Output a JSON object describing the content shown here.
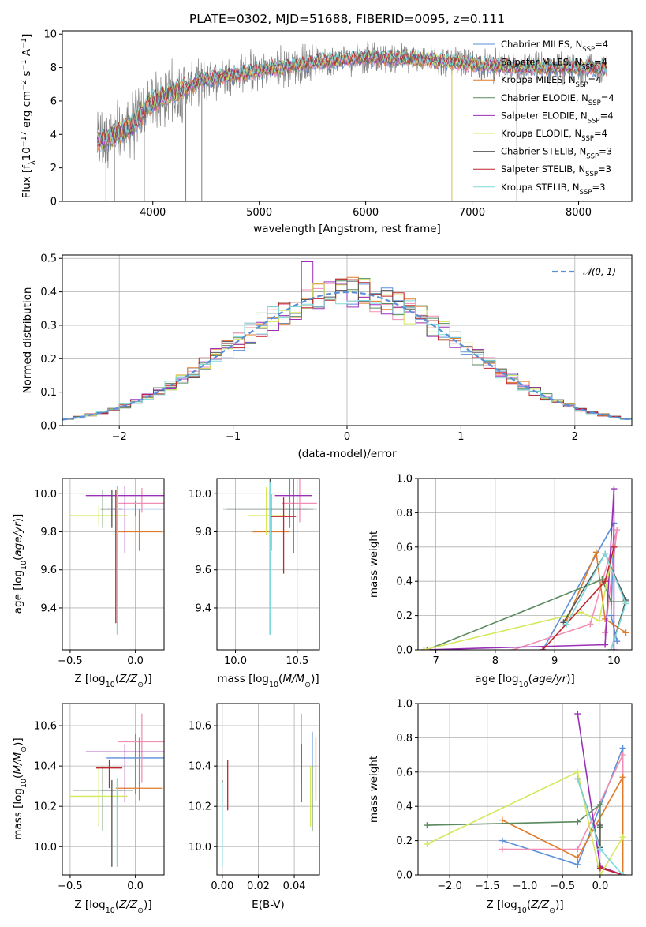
{
  "figure": {
    "title": "PLATE=0302, MJD=51688, FIBERID=0095, z=0.111"
  },
  "colors": {
    "chabrier_miles": "#5b8fd9",
    "salpeter_miles": "#f28fb5",
    "kroupa_miles": "#e07b2a",
    "chabrier_elodie": "#5a8a5e",
    "salpeter_elodie": "#9b30b8",
    "kroupa_elodie": "#d4e85a",
    "chabrier_stelib": "#555555",
    "salpeter_stelib": "#c0262c",
    "kroupa_stelib": "#7fd8dc",
    "normal_curve": "#5b8fd9"
  },
  "chart_data": [
    {
      "type": "line",
      "id": "spectrum",
      "xlabel": "wavelength [Angstrom, rest frame]",
      "ylabel": "Flux [f",
      "xticks": [
        "4000",
        "5000",
        "6000",
        "7000",
        "8000"
      ],
      "yticks": [
        "0",
        "2",
        "4",
        "6",
        "8",
        "10"
      ],
      "xlim": [
        3150,
        8500
      ],
      "ylim": [
        0,
        10.2
      ],
      "series": [
        {
          "name": "Chabrier MILES, N",
          "sub": "SSP",
          "suffix": "=4",
          "color": "#5b8fd9"
        },
        {
          "name": "Salpeter MILES, N",
          "sub": "SSP",
          "suffix": "=4",
          "color": "#f28fb5"
        },
        {
          "name": "Kroupa MILES, N",
          "sub": "SSP",
          "suffix": "=4",
          "color": "#e07b2a"
        },
        {
          "name": "Chabrier ELODIE, N",
          "sub": "SSP",
          "suffix": "=4",
          "color": "#5a8a5e"
        },
        {
          "name": "Salpeter ELODIE, N",
          "sub": "SSP",
          "suffix": "=4",
          "color": "#9b30b8"
        },
        {
          "name": "Kroupa ELODIE, N",
          "sub": "SSP",
          "suffix": "=4",
          "color": "#d4e85a"
        },
        {
          "name": "Chabrier STELIB, N",
          "sub": "SSP",
          "suffix": "=3",
          "color": "#555555"
        },
        {
          "name": "Salpeter STELIB, N",
          "sub": "SSP",
          "suffix": "=3",
          "color": "#c0262c"
        },
        {
          "name": "Kroupa STELIB, N",
          "sub": "SSP",
          "suffix": "=3",
          "color": "#7fd8dc"
        }
      ],
      "continuum": [
        [
          3480,
          3.6
        ],
        [
          3600,
          3.8
        ],
        [
          3800,
          4.5
        ],
        [
          4000,
          6.0
        ],
        [
          4200,
          6.5
        ],
        [
          4500,
          7.3
        ],
        [
          5000,
          7.8
        ],
        [
          5500,
          8.3
        ],
        [
          6000,
          8.6
        ],
        [
          6500,
          8.5
        ],
        [
          7000,
          8.2
        ],
        [
          7500,
          8.0
        ],
        [
          8000,
          8.0
        ],
        [
          8270,
          7.9
        ]
      ]
    },
    {
      "type": "line",
      "id": "residuals",
      "xlabel": "(data-model)/error",
      "ylabel": "Normed distribution",
      "xticks": [
        "−2",
        "−1",
        "0",
        "1",
        "2"
      ],
      "yticks": [
        "0.0",
        "0.1",
        "0.2",
        "0.3",
        "0.4",
        "0.5"
      ],
      "xlim": [
        -2.5,
        2.5
      ],
      "ylim": [
        0,
        0.51
      ],
      "legend": "𝒩(0, 1)",
      "bin_width": 0.1
    },
    {
      "type": "scatter",
      "id": "age_vs_Z",
      "xlabel": "Z [log",
      "ylabel": "age  [log",
      "xticks": [
        "−0.5",
        "0.0"
      ],
      "yticks": [
        "9.4",
        "9.6",
        "9.8",
        "10.0"
      ],
      "xlim": [
        -0.56,
        0.22
      ],
      "ylim": [
        9.18,
        10.08
      ],
      "points": [
        {
          "x": 0.0,
          "y": 9.92,
          "xerr": 0.22,
          "yerr": [
            0.04,
            0.04
          ],
          "color": "#5b8fd9"
        },
        {
          "x": 0.05,
          "y": 9.95,
          "xerr": 0.18,
          "yerr": [
            0.05,
            0.08
          ],
          "color": "#f28fb5"
        },
        {
          "x": 0.03,
          "y": 9.8,
          "xerr": 0.18,
          "yerr": [
            0.1,
            0.12
          ],
          "color": "#e07b2a"
        },
        {
          "x": -0.25,
          "y": 9.92,
          "xerr": 0.02,
          "yerr": [
            0.1,
            0.1
          ],
          "color": "#5a8a5e"
        },
        {
          "x": -0.08,
          "y": 9.99,
          "xerr": 0.3,
          "yerr": [
            0.3,
            0.05
          ],
          "color": "#9b30b8"
        },
        {
          "x": -0.28,
          "y": 9.885,
          "xerr": 0.22,
          "yerr": [
            0.05,
            0.05
          ],
          "color": "#d4e85a"
        },
        {
          "x": -0.18,
          "y": 9.92,
          "xerr": 0.08,
          "yerr": [
            0.1,
            0.1
          ],
          "color": "#555555"
        },
        {
          "x": -0.15,
          "y": 9.92,
          "xerr": 0.02,
          "yerr": [
            0.6,
            0.1
          ],
          "color": "#c0262c"
        },
        {
          "x": -0.14,
          "y": 9.92,
          "xerr": 0.01,
          "yerr": [
            0.66,
            0.12
          ],
          "color": "#7fd8dc"
        }
      ]
    },
    {
      "type": "scatter",
      "id": "age_vs_mass",
      "xlabel": "mass [log",
      "ylabel": "",
      "xticks": [
        "10.0",
        "10.5"
      ],
      "yticks": [
        "9.4",
        "9.6",
        "9.8",
        "10.0"
      ],
      "xlim": [
        9.85,
        10.68
      ],
      "ylim": [
        9.18,
        10.08
      ],
      "points": [
        {
          "x": 10.44,
          "y": 9.92,
          "xerr": 0.15,
          "yerr": [
            0.1,
            0.18
          ],
          "color": "#5b8fd9"
        },
        {
          "x": 10.52,
          "y": 9.95,
          "xerr": 0.14,
          "yerr": [
            0.1,
            0.15
          ],
          "color": "#f28fb5"
        },
        {
          "x": 10.29,
          "y": 9.8,
          "xerr": 0.15,
          "yerr": [
            0.1,
            0.2
          ],
          "color": "#e07b2a"
        },
        {
          "x": 10.28,
          "y": 9.92,
          "xerr": 0.38,
          "yerr": [
            0.1,
            0.1
          ],
          "color": "#5a8a5e"
        },
        {
          "x": 10.47,
          "y": 9.99,
          "xerr": 0.15,
          "yerr": [
            0.3,
            0.1
          ],
          "color": "#9b30b8"
        },
        {
          "x": 10.25,
          "y": 9.885,
          "xerr": 0.15,
          "yerr": [
            0.1,
            0.15
          ],
          "color": "#d4e85a"
        },
        {
          "x": 10.28,
          "y": 9.92,
          "xerr": 0.35,
          "yerr": [
            0.66,
            0.18
          ],
          "color": "#555555"
        },
        {
          "x": 10.39,
          "y": 9.88,
          "xerr": 0.1,
          "yerr": [
            0.3,
            0.1
          ],
          "color": "#c0262c"
        },
        {
          "x": 10.28,
          "y": 9.92,
          "xerr": 0.01,
          "yerr": [
            0.66,
            0.14
          ],
          "color": "#7fd8dc"
        }
      ]
    },
    {
      "type": "line",
      "id": "mass_weight_vs_age",
      "xlabel": "age  [log",
      "ylabel": "mass weight",
      "xticks": [
        "7",
        "8",
        "9",
        "10"
      ],
      "yticks": [
        "0.0",
        "0.2",
        "0.4",
        "0.6",
        "0.8",
        "1.0"
      ],
      "xlim": [
        6.7,
        10.3
      ],
      "ylim": [
        0,
        1
      ],
      "series": [
        {
          "color": "#5b8fd9",
          "x": [
            8.8,
            10.0,
            9.95,
            10.05
          ],
          "y": [
            0.0,
            0.74,
            0.2,
            0.05
          ]
        },
        {
          "color": "#f28fb5",
          "x": [
            8.3,
            9.6,
            10.05,
            9.85
          ],
          "y": [
            0.0,
            0.15,
            0.7,
            0.1
          ]
        },
        {
          "color": "#e07b2a",
          "x": [
            9.2,
            9.7,
            9.85,
            10.2
          ],
          "y": [
            0.17,
            0.57,
            0.18,
            0.1
          ]
        },
        {
          "color": "#5a8a5e",
          "x": [
            6.85,
            9.8,
            9.95,
            10.2
          ],
          "y": [
            0.0,
            0.41,
            0.28,
            0.28
          ]
        },
        {
          "color": "#9b30b8",
          "x": [
            6.8,
            9.85,
            10.0,
            10.0
          ],
          "y": [
            0.0,
            0.03,
            0.94,
            0.0
          ]
        },
        {
          "color": "#d4e85a",
          "x": [
            6.8,
            9.45,
            9.75,
            10.0
          ],
          "y": [
            0.0,
            0.22,
            0.17,
            0.6
          ]
        },
        {
          "color": "#555555",
          "x": [
            9.15,
            9.85,
            10.2,
            9.95
          ],
          "y": [
            0.16,
            0.56,
            0.29,
            0.0
          ]
        },
        {
          "color": "#c0262c",
          "x": [
            8.8,
            9.85,
            10.0
          ],
          "y": [
            0.0,
            0.4,
            0.6
          ]
        },
        {
          "color": "#7fd8dc",
          "x": [
            9.2,
            9.85,
            10.2,
            9.95
          ],
          "y": [
            0.15,
            0.56,
            0.27,
            0.0
          ]
        }
      ]
    },
    {
      "type": "scatter",
      "id": "mass_vs_Z",
      "xlabel": "Z [log",
      "ylabel": "mass [log",
      "xticks": [
        "−0.5",
        "0.0"
      ],
      "yticks": [
        "10.0",
        "10.2",
        "10.4",
        "10.6"
      ],
      "xlim": [
        -0.56,
        0.22
      ],
      "ylim": [
        9.86,
        10.71
      ],
      "points": [
        {
          "x": 0.0,
          "y": 10.44,
          "xerr": 0.22,
          "yerr": [
            0.18,
            0.12
          ],
          "color": "#5b8fd9"
        },
        {
          "x": 0.05,
          "y": 10.52,
          "xerr": 0.18,
          "yerr": [
            0.2,
            0.14
          ],
          "color": "#f28fb5"
        },
        {
          "x": 0.03,
          "y": 10.29,
          "xerr": 0.18,
          "yerr": [
            0.06,
            0.25
          ],
          "color": "#e07b2a"
        },
        {
          "x": -0.25,
          "y": 10.28,
          "xerr": 0.23,
          "yerr": [
            0.2,
            0.12
          ],
          "color": "#5a8a5e"
        },
        {
          "x": -0.08,
          "y": 10.47,
          "xerr": 0.3,
          "yerr": [
            0.25,
            0.04
          ],
          "color": "#9b30b8"
        },
        {
          "x": -0.28,
          "y": 10.25,
          "xerr": 0.22,
          "yerr": [
            0.15,
            0.15
          ],
          "color": "#d4e85a"
        },
        {
          "x": -0.18,
          "y": 10.28,
          "xerr": 0.08,
          "yerr": [
            0.38,
            0.05
          ],
          "color": "#555555"
        },
        {
          "x": -0.2,
          "y": 10.39,
          "xerr": 0.1,
          "yerr": [
            0.1,
            0.04
          ],
          "color": "#c0262c"
        },
        {
          "x": -0.14,
          "y": 10.28,
          "xerr": 0.01,
          "yerr": [
            0.38,
            0.06
          ],
          "color": "#7fd8dc"
        }
      ]
    },
    {
      "type": "scatter",
      "id": "mass_vs_EBV",
      "xlabel": "E(B-V)",
      "ylabel": "",
      "xticks": [
        "0.00",
        "0.02",
        "0.04"
      ],
      "yticks": [
        "10.0",
        "10.2",
        "10.4",
        "10.6"
      ],
      "xlim": [
        -0.003,
        0.054
      ],
      "ylim": [
        9.86,
        10.71
      ],
      "points": [
        {
          "x": 0.05,
          "y": 10.44,
          "xerr": 0.0,
          "yerr": [
            0.18,
            0.13
          ],
          "color": "#5b8fd9"
        },
        {
          "x": 0.044,
          "y": 10.52,
          "xerr": 0.0,
          "yerr": [
            0.2,
            0.14
          ],
          "color": "#f28fb5"
        },
        {
          "x": 0.052,
          "y": 10.29,
          "xerr": 0.0,
          "yerr": [
            0.06,
            0.25
          ],
          "color": "#e07b2a"
        },
        {
          "x": 0.05,
          "y": 10.28,
          "xerr": 0.0,
          "yerr": [
            0.2,
            0.12
          ],
          "color": "#5a8a5e"
        },
        {
          "x": 0.044,
          "y": 10.47,
          "xerr": 0.0,
          "yerr": [
            0.25,
            0.04
          ],
          "color": "#9b30b8"
        },
        {
          "x": 0.049,
          "y": 10.25,
          "xerr": 0.0,
          "yerr": [
            0.15,
            0.15
          ],
          "color": "#d4e85a"
        },
        {
          "x": 0.0,
          "y": 10.28,
          "xerr": 0.0,
          "yerr": [
            0.38,
            0.05
          ],
          "color": "#555555"
        },
        {
          "x": 0.003,
          "y": 10.3,
          "xerr": 0.0,
          "yerr": [
            0.12,
            0.13
          ],
          "color": "#c0262c"
        },
        {
          "x": 0.0,
          "y": 10.28,
          "xerr": 0.0,
          "yerr": [
            0.38,
            0.04
          ],
          "color": "#7fd8dc"
        }
      ]
    },
    {
      "type": "line",
      "id": "mass_weight_vs_Z",
      "xlabel": "Z [log",
      "ylabel": "mass weight",
      "xticks": [
        "−2.0",
        "−1.5",
        "−1.0",
        "−0.5",
        "0.0"
      ],
      "yticks": [
        "0.0",
        "0.2",
        "0.4",
        "0.6",
        "0.8",
        "1.0"
      ],
      "xlim": [
        -2.42,
        0.42
      ],
      "ylim": [
        0,
        1
      ],
      "series": [
        {
          "color": "#5b8fd9",
          "x": [
            -1.3,
            -0.3,
            0.3,
            0.3
          ],
          "y": [
            0.2,
            0.06,
            0.74,
            0.0
          ]
        },
        {
          "color": "#f28fb5",
          "x": [
            -1.3,
            -0.3,
            0.3,
            0.3
          ],
          "y": [
            0.15,
            0.15,
            0.7,
            0.0
          ]
        },
        {
          "color": "#e07b2a",
          "x": [
            -1.3,
            -0.3,
            0.3,
            0.3
          ],
          "y": [
            0.32,
            0.1,
            0.57,
            0.0
          ]
        },
        {
          "color": "#5a8a5e",
          "x": [
            -2.3,
            -0.3,
            0.0,
            0.0
          ],
          "y": [
            0.29,
            0.31,
            0.41,
            0.28
          ]
        },
        {
          "color": "#9b30b8",
          "x": [
            -0.3,
            0.0,
            0.3
          ],
          "y": [
            0.94,
            0.05,
            0.0
          ]
        },
        {
          "color": "#d4e85a",
          "x": [
            -2.3,
            -0.3,
            0.0,
            0.3
          ],
          "y": [
            0.18,
            0.6,
            0.0,
            0.22
          ]
        },
        {
          "color": "#555555",
          "x": [
            -0.3,
            0.0,
            0.0
          ],
          "y": [
            0.56,
            0.16,
            0.29
          ]
        },
        {
          "color": "#c0262c",
          "x": [
            0.0,
            0.3
          ],
          "y": [
            0.04,
            0.0
          ]
        },
        {
          "color": "#7fd8dc",
          "x": [
            -0.3,
            0.0,
            0.3
          ],
          "y": [
            0.56,
            0.15,
            0.0
          ]
        }
      ]
    }
  ]
}
